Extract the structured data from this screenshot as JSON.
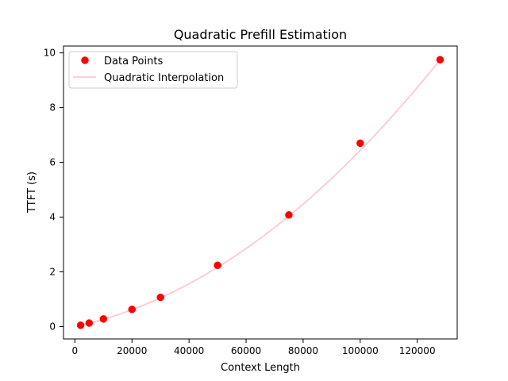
{
  "chart_data": {
    "type": "scatter",
    "title": "Quadratic Prefill Estimation",
    "xlabel": "Context Length",
    "ylabel": "TTFT (s)",
    "xlim": [
      -4000,
      134000
    ],
    "ylim": [
      -0.45,
      10.25
    ],
    "xticks": [
      0,
      20000,
      40000,
      60000,
      80000,
      100000,
      120000
    ],
    "yticks": [
      0,
      2,
      4,
      6,
      8,
      10
    ],
    "grid": false,
    "legend_position": "upper-left",
    "series": [
      {
        "name": "Data Points",
        "kind": "scatter",
        "color": "#ff0000",
        "x": [
          2000,
          5000,
          10000,
          20000,
          30000,
          50000,
          75000,
          100000,
          128000
        ],
        "y": [
          0.05,
          0.13,
          0.28,
          0.63,
          1.07,
          2.24,
          4.08,
          6.7,
          9.75
        ]
      },
      {
        "name": "Quadratic Interpolation",
        "kind": "line",
        "color": "#ffc0cb",
        "x_range": [
          2000,
          128000
        ],
        "coefficients": {
          "a": 4.216e-10,
          "b": 2.2163e-05,
          "c": 0.0059
        }
      }
    ]
  }
}
